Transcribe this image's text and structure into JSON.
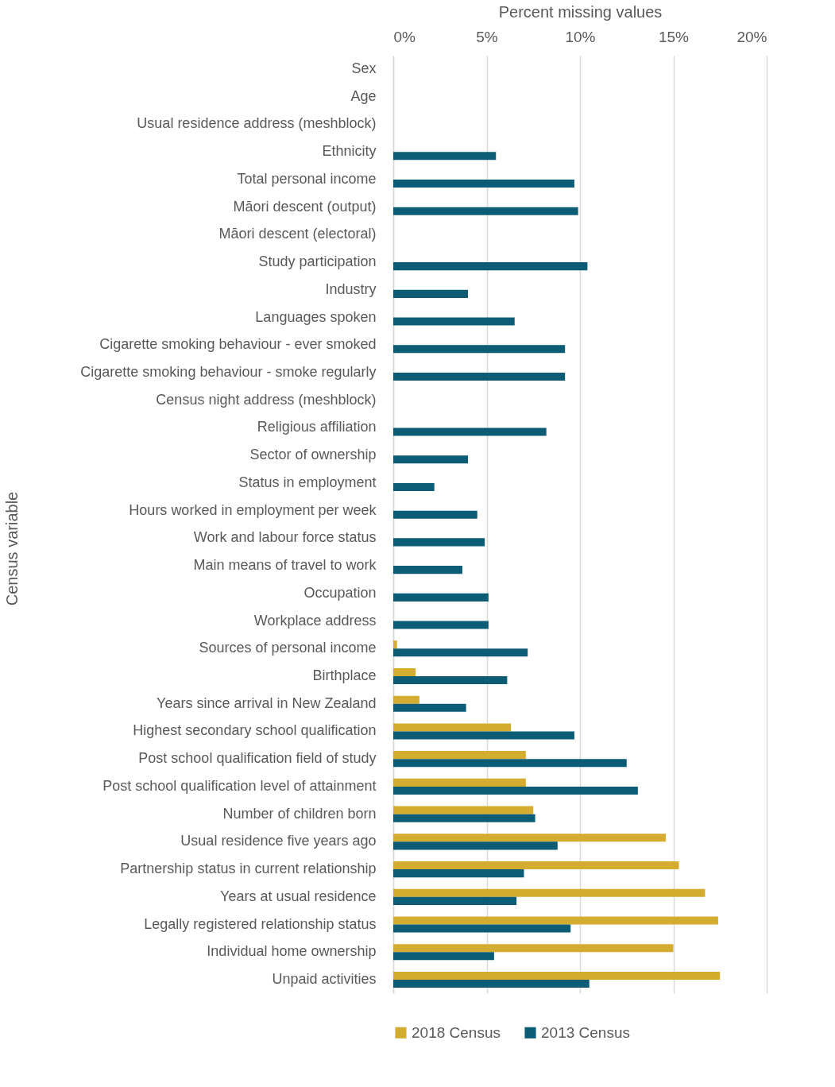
{
  "chart_data": {
    "type": "bar",
    "orientation": "horizontal",
    "xlabel": "Percent missing values",
    "ylabel": "Census variable",
    "categories": [
      "Sex",
      "Age",
      "Usual residence address (meshblock)",
      "Ethnicity",
      "Total personal income",
      "Māori descent (output)",
      "Māori descent (electoral)",
      "Study participation",
      "Industry",
      "Languages spoken",
      "Cigarette smoking behaviour - ever smoked",
      "Cigarette smoking behaviour - smoke regularly",
      "Census night address (meshblock)",
      "Religious affiliation",
      "Sector of ownership",
      "Status in employment",
      "Hours worked in employment per week",
      "Work and labour force status",
      "Main means of travel to work",
      "Occupation",
      "Workplace address",
      "Sources of personal income",
      "Birthplace",
      "Years since arrival in New Zealand",
      "Highest secondary school qualification",
      "Post school qualification field of study",
      "Post school qualification level of attainment",
      "Number of children born",
      "Usual residence five years ago",
      "Partnership status in current relationship",
      "Years at usual residence",
      "Legally registered relationship status",
      "Individual home ownership",
      "Unpaid activities"
    ],
    "series": [
      {
        "name": "2018 Census",
        "color": "#d4ac2f",
        "values": [
          null,
          null,
          null,
          null,
          null,
          null,
          null,
          null,
          null,
          null,
          null,
          null,
          null,
          null,
          null,
          null,
          null,
          null,
          null,
          null,
          null,
          0.2,
          1.2,
          1.4,
          6.3,
          7.1,
          7.1,
          7.5,
          14.6,
          15.3,
          16.7,
          17.4,
          15.0,
          17.5
        ]
      },
      {
        "name": "2013 Census",
        "color": "#0b5c74",
        "values": [
          null,
          null,
          null,
          5.5,
          9.7,
          9.9,
          null,
          10.4,
          4.0,
          6.5,
          9.2,
          9.2,
          null,
          8.2,
          4.0,
          2.2,
          4.5,
          4.9,
          3.7,
          5.1,
          5.1,
          7.2,
          6.1,
          3.9,
          9.7,
          12.5,
          13.1,
          7.6,
          8.8,
          7.0,
          6.6,
          9.5,
          5.4,
          10.5
        ]
      }
    ],
    "xlim": [
      0,
      20
    ],
    "xticks": [
      {
        "value": 0,
        "label": "0%"
      },
      {
        "value": 5,
        "label": "5%"
      },
      {
        "value": 10,
        "label": "10%"
      },
      {
        "value": 15,
        "label": "15%"
      },
      {
        "value": 20,
        "label": "20%"
      }
    ],
    "grid": "x",
    "legend": "bottom"
  }
}
